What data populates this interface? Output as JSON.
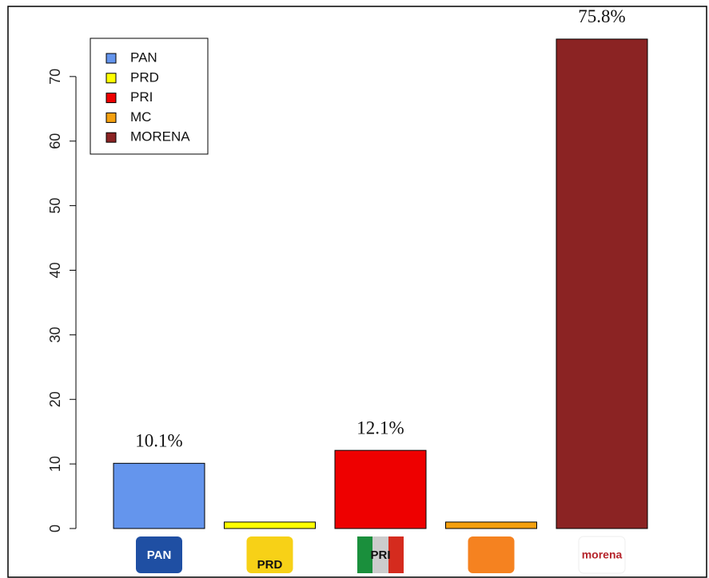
{
  "chart_data": {
    "type": "bar",
    "categories": [
      "PAN",
      "PRD",
      "PRI",
      "MC",
      "MORENA"
    ],
    "values": [
      10.1,
      1.0,
      12.1,
      1.0,
      75.8
    ],
    "value_labels": [
      "10.1%",
      null,
      "12.1%",
      null,
      "75.8%"
    ],
    "colors": [
      "#6495ed",
      "#ffff00",
      "#ee0000",
      "#f5a00f",
      "#8b2323"
    ],
    "logo_labels": [
      "PAN",
      "PRD",
      "PRI",
      null,
      "morena"
    ],
    "ylim": [
      0,
      80
    ],
    "yticks": [
      0,
      10,
      20,
      30,
      40,
      50,
      60,
      70
    ],
    "legend": "top-left"
  }
}
